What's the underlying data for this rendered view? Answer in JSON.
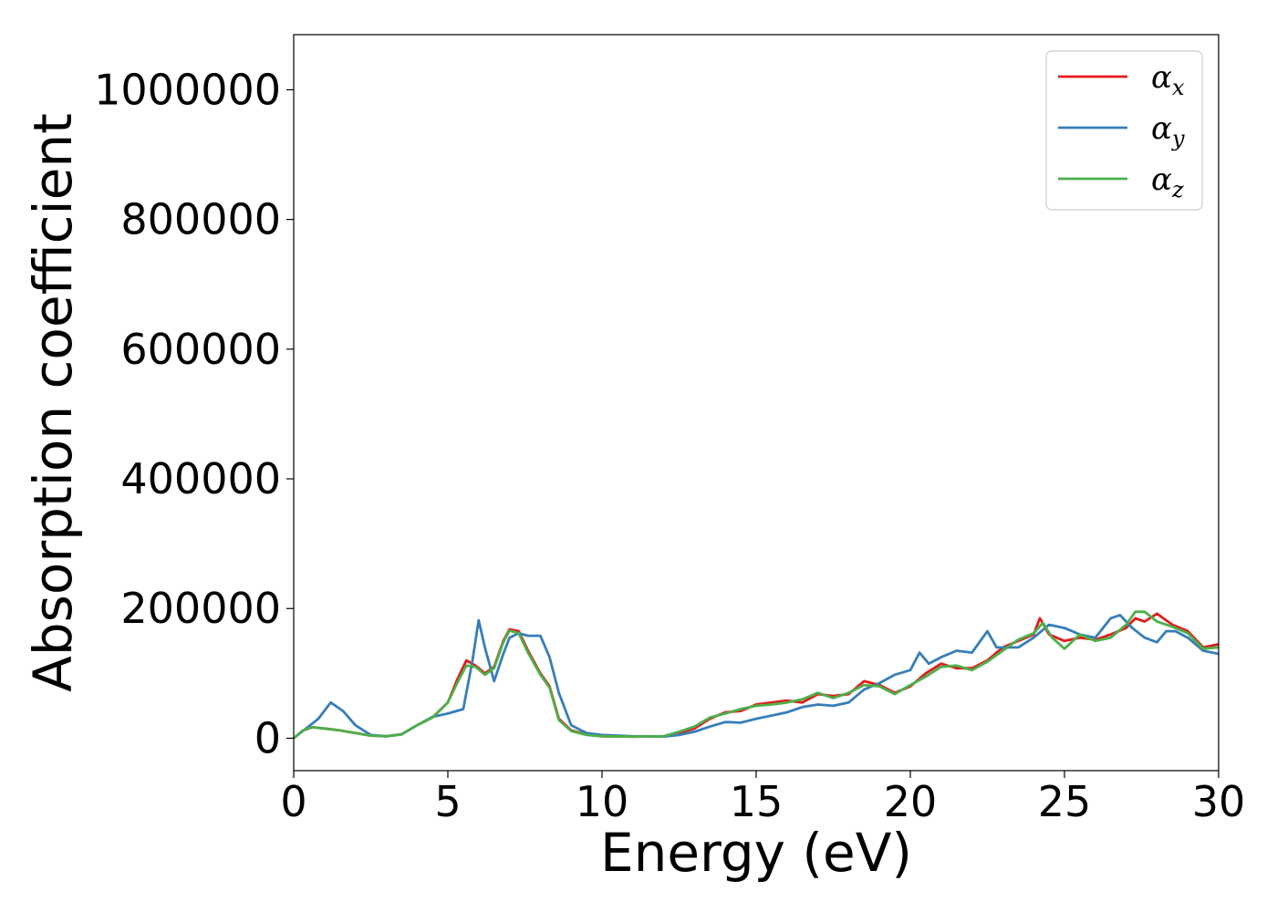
{
  "chart_data": {
    "type": "line",
    "title": "",
    "xlabel": "Energy (eV)",
    "ylabel": "Absorption coefficient",
    "xlim": [
      0,
      30
    ],
    "ylim": [
      -50000,
      1085000
    ],
    "xticks": [
      0,
      5,
      10,
      15,
      20,
      25,
      30
    ],
    "yticks": [
      0,
      200000,
      400000,
      600000,
      800000,
      1000000
    ],
    "grid": false,
    "legend_position": "top-right",
    "series": [
      {
        "name": "α_x",
        "legend_base": "α",
        "legend_sub": "x",
        "color": "#e41a1c",
        "points": [
          [
            0,
            0
          ],
          [
            0.3,
            12000
          ],
          [
            0.6,
            17000
          ],
          [
            1.0,
            15000
          ],
          [
            1.5,
            12000
          ],
          [
            2.0,
            8000
          ],
          [
            2.5,
            4000
          ],
          [
            3.0,
            3000
          ],
          [
            3.5,
            6000
          ],
          [
            4.0,
            20000
          ],
          [
            4.5,
            32000
          ],
          [
            5.0,
            55000
          ],
          [
            5.3,
            90000
          ],
          [
            5.6,
            120000
          ],
          [
            5.9,
            112000
          ],
          [
            6.2,
            100000
          ],
          [
            6.5,
            110000
          ],
          [
            6.8,
            150000
          ],
          [
            7.0,
            168000
          ],
          [
            7.3,
            165000
          ],
          [
            7.6,
            135000
          ],
          [
            8.0,
            100000
          ],
          [
            8.3,
            80000
          ],
          [
            8.6,
            30000
          ],
          [
            9.0,
            12000
          ],
          [
            9.5,
            6000
          ],
          [
            10,
            3000
          ],
          [
            11,
            2500
          ],
          [
            12,
            3000
          ],
          [
            12.5,
            8000
          ],
          [
            13,
            15000
          ],
          [
            13.5,
            30000
          ],
          [
            14,
            40000
          ],
          [
            14.5,
            42000
          ],
          [
            15,
            52000
          ],
          [
            15.5,
            55000
          ],
          [
            16,
            58000
          ],
          [
            16.5,
            55000
          ],
          [
            17,
            68000
          ],
          [
            17.5,
            65000
          ],
          [
            18,
            68000
          ],
          [
            18.5,
            88000
          ],
          [
            19,
            82000
          ],
          [
            19.5,
            70000
          ],
          [
            20,
            80000
          ],
          [
            20.5,
            100000
          ],
          [
            21,
            115000
          ],
          [
            21.5,
            108000
          ],
          [
            22,
            108000
          ],
          [
            22.5,
            120000
          ],
          [
            23,
            140000
          ],
          [
            23.5,
            150000
          ],
          [
            24,
            160000
          ],
          [
            24.2,
            185000
          ],
          [
            24.5,
            160000
          ],
          [
            25,
            150000
          ],
          [
            25.5,
            155000
          ],
          [
            26,
            152000
          ],
          [
            26.5,
            160000
          ],
          [
            27,
            170000
          ],
          [
            27.3,
            185000
          ],
          [
            27.6,
            180000
          ],
          [
            28,
            192000
          ],
          [
            28.5,
            175000
          ],
          [
            29,
            165000
          ],
          [
            29.5,
            140000
          ],
          [
            30,
            145000
          ]
        ]
      },
      {
        "name": "α_y",
        "legend_base": "α",
        "legend_sub": "y",
        "color": "#377eb8",
        "points": [
          [
            0,
            0
          ],
          [
            0.4,
            15000
          ],
          [
            0.8,
            30000
          ],
          [
            1.2,
            55000
          ],
          [
            1.6,
            42000
          ],
          [
            2.0,
            20000
          ],
          [
            2.5,
            5000
          ],
          [
            3.0,
            3000
          ],
          [
            3.5,
            6000
          ],
          [
            4.0,
            20000
          ],
          [
            4.5,
            33000
          ],
          [
            5.0,
            38000
          ],
          [
            5.5,
            45000
          ],
          [
            5.8,
            120000
          ],
          [
            6.0,
            182000
          ],
          [
            6.2,
            140000
          ],
          [
            6.5,
            88000
          ],
          [
            6.8,
            130000
          ],
          [
            7.0,
            155000
          ],
          [
            7.3,
            162000
          ],
          [
            7.6,
            158000
          ],
          [
            8.0,
            158000
          ],
          [
            8.3,
            125000
          ],
          [
            8.6,
            70000
          ],
          [
            9.0,
            20000
          ],
          [
            9.5,
            8000
          ],
          [
            10,
            5000
          ],
          [
            11,
            3000
          ],
          [
            12,
            2500
          ],
          [
            12.5,
            5000
          ],
          [
            13,
            10000
          ],
          [
            13.5,
            18000
          ],
          [
            14,
            25000
          ],
          [
            14.5,
            24000
          ],
          [
            15,
            30000
          ],
          [
            15.5,
            35000
          ],
          [
            16,
            40000
          ],
          [
            16.5,
            48000
          ],
          [
            17,
            52000
          ],
          [
            17.5,
            50000
          ],
          [
            18,
            55000
          ],
          [
            18.5,
            75000
          ],
          [
            19,
            85000
          ],
          [
            19.5,
            98000
          ],
          [
            20,
            105000
          ],
          [
            20.3,
            132000
          ],
          [
            20.6,
            115000
          ],
          [
            21,
            125000
          ],
          [
            21.5,
            135000
          ],
          [
            22,
            132000
          ],
          [
            22.5,
            165000
          ],
          [
            22.8,
            140000
          ],
          [
            23,
            140000
          ],
          [
            23.5,
            140000
          ],
          [
            24,
            155000
          ],
          [
            24.5,
            175000
          ],
          [
            25,
            170000
          ],
          [
            25.5,
            160000
          ],
          [
            26,
            155000
          ],
          [
            26.5,
            185000
          ],
          [
            26.8,
            190000
          ],
          [
            27.2,
            170000
          ],
          [
            27.6,
            155000
          ],
          [
            28,
            148000
          ],
          [
            28.3,
            165000
          ],
          [
            28.6,
            165000
          ],
          [
            29,
            155000
          ],
          [
            29.5,
            135000
          ],
          [
            30,
            130000
          ]
        ]
      },
      {
        "name": "α_z",
        "legend_base": "α",
        "legend_sub": "z",
        "color": "#4daf4a",
        "points": [
          [
            0,
            0
          ],
          [
            0.3,
            12000
          ],
          [
            0.6,
            17000
          ],
          [
            1.0,
            15000
          ],
          [
            1.5,
            12000
          ],
          [
            2.0,
            8000
          ],
          [
            2.5,
            4000
          ],
          [
            3.0,
            3000
          ],
          [
            3.5,
            6000
          ],
          [
            4.0,
            20000
          ],
          [
            4.5,
            32000
          ],
          [
            5.0,
            55000
          ],
          [
            5.3,
            85000
          ],
          [
            5.6,
            112000
          ],
          [
            5.9,
            110000
          ],
          [
            6.2,
            98000
          ],
          [
            6.5,
            108000
          ],
          [
            6.8,
            148000
          ],
          [
            7.0,
            166000
          ],
          [
            7.3,
            162000
          ],
          [
            7.6,
            132000
          ],
          [
            8.0,
            98000
          ],
          [
            8.3,
            78000
          ],
          [
            8.6,
            28000
          ],
          [
            9.0,
            11000
          ],
          [
            9.5,
            5000
          ],
          [
            10,
            3000
          ],
          [
            11,
            2500
          ],
          [
            12,
            3000
          ],
          [
            12.5,
            10000
          ],
          [
            13,
            18000
          ],
          [
            13.5,
            32000
          ],
          [
            14,
            38000
          ],
          [
            14.5,
            45000
          ],
          [
            15,
            50000
          ],
          [
            15.5,
            52000
          ],
          [
            16,
            55000
          ],
          [
            16.5,
            60000
          ],
          [
            17,
            70000
          ],
          [
            17.5,
            62000
          ],
          [
            18,
            70000
          ],
          [
            18.5,
            82000
          ],
          [
            19,
            80000
          ],
          [
            19.5,
            68000
          ],
          [
            20,
            82000
          ],
          [
            20.5,
            95000
          ],
          [
            21,
            110000
          ],
          [
            21.5,
            112000
          ],
          [
            22,
            105000
          ],
          [
            22.5,
            118000
          ],
          [
            23,
            135000
          ],
          [
            23.5,
            152000
          ],
          [
            24,
            162000
          ],
          [
            24.3,
            178000
          ],
          [
            24.6,
            155000
          ],
          [
            25,
            138000
          ],
          [
            25.5,
            160000
          ],
          [
            26,
            150000
          ],
          [
            26.5,
            155000
          ],
          [
            27,
            175000
          ],
          [
            27.3,
            195000
          ],
          [
            27.6,
            195000
          ],
          [
            28,
            180000
          ],
          [
            28.5,
            172000
          ],
          [
            29,
            162000
          ],
          [
            29.5,
            138000
          ],
          [
            30,
            140000
          ]
        ]
      }
    ]
  }
}
